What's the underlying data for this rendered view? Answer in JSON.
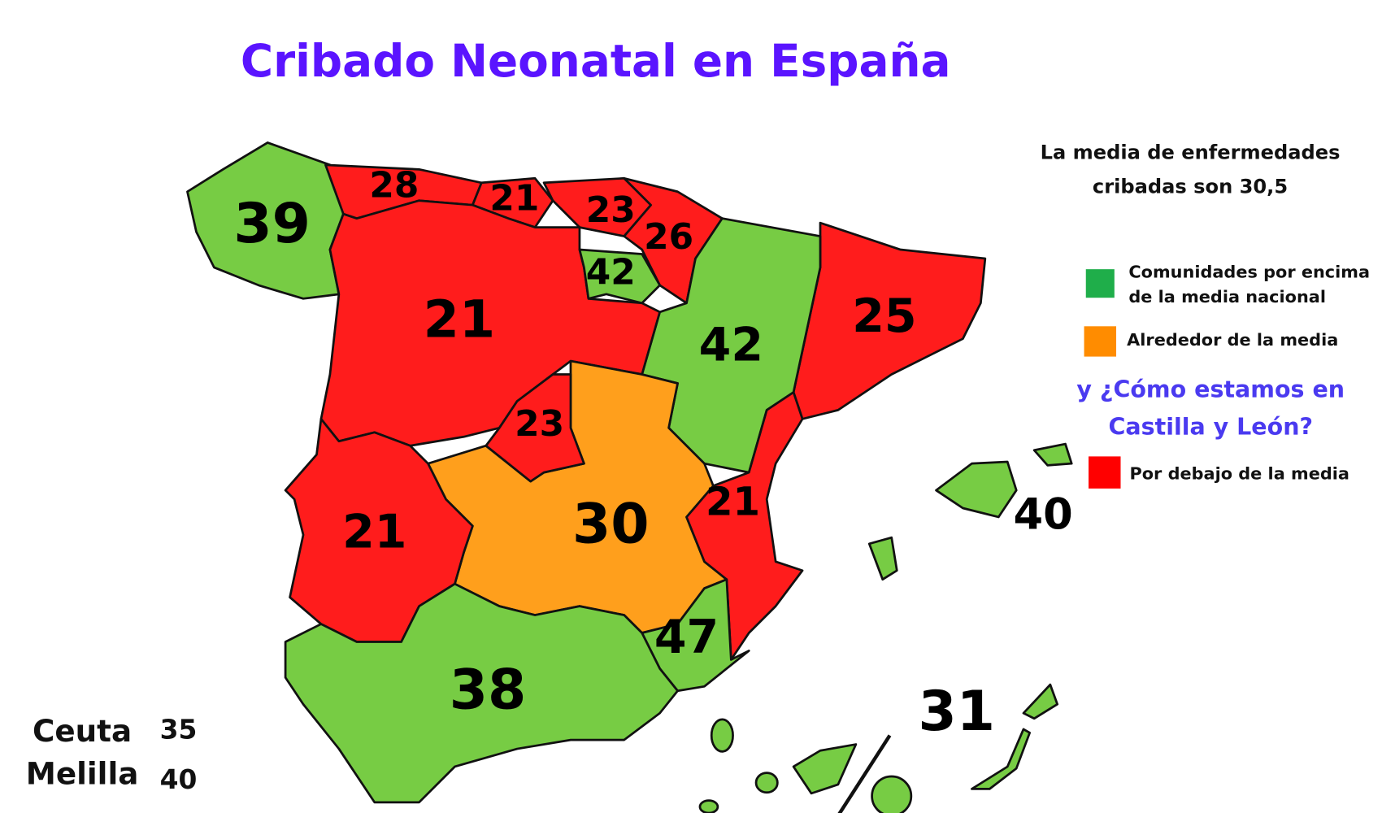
{
  "title": "Cribado Neonatal en España",
  "note": [
    "La media de enfermedades",
    "cribadas son 30,5"
  ],
  "legend": [
    {
      "label": [
        "Comunidades por encima",
        "de la media nacional"
      ],
      "color": "#1fae4a"
    },
    {
      "label": [
        "Alrededor de la media"
      ],
      "color": "#ff8c00"
    },
    {
      "label": [
        "Por debajo de la media"
      ],
      "color": "#ff0000"
    }
  ],
  "question": [
    "y ¿Cómo estamos en",
    "Castilla y León?"
  ],
  "regions": [
    {
      "value": 39,
      "color": "#77cc44"
    },
    {
      "value": 28,
      "color": "#ff1c1c"
    },
    {
      "value": 21,
      "color": "#ff1c1c"
    },
    {
      "value": 23,
      "color": "#ff1c1c"
    },
    {
      "value": 26,
      "color": "#ff1c1c"
    },
    {
      "value": 42,
      "color": "#77cc44"
    },
    {
      "value": 25,
      "color": "#ff1c1c"
    },
    {
      "value": 42,
      "color": "#77cc44"
    },
    {
      "value": 21,
      "color": "#ff1c1c"
    },
    {
      "value": 23,
      "color": "#ff1c1c"
    },
    {
      "value": 30,
      "color": "#ff9f1c"
    },
    {
      "value": 21,
      "color": "#ff1c1c"
    },
    {
      "value": 21,
      "color": "#ff1c1c"
    },
    {
      "value": 47,
      "color": "#77cc44"
    },
    {
      "value": 38,
      "color": "#77cc44"
    },
    {
      "value": 40,
      "color": "#77cc44"
    },
    {
      "value": 31,
      "color": "#77cc44"
    }
  ],
  "cities": [
    {
      "name": "Ceuta",
      "value": 35
    },
    {
      "name": "Melilla",
      "value": 40
    }
  ]
}
